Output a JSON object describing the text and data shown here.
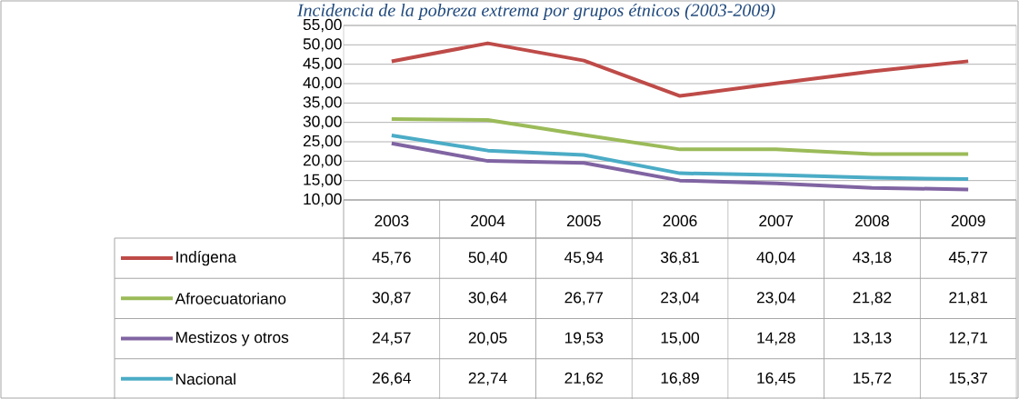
{
  "chart_data": {
    "type": "line",
    "title": "Incidencia de la pobreza extrema por grupos étnicos (2003-2009)",
    "categories": [
      "2003",
      "2004",
      "2005",
      "2006",
      "2007",
      "2008",
      "2009"
    ],
    "ylim": [
      10,
      55
    ],
    "yticks": [
      {
        "value": 10,
        "label": "10,00"
      },
      {
        "value": 15,
        "label": "15,00"
      },
      {
        "value": 20,
        "label": "20,00"
      },
      {
        "value": 25,
        "label": "25,00"
      },
      {
        "value": 30,
        "label": "30,00"
      },
      {
        "value": 35,
        "label": "35,00"
      },
      {
        "value": 40,
        "label": "40,00"
      },
      {
        "value": 45,
        "label": "45,00"
      },
      {
        "value": 50,
        "label": "50,00"
      },
      {
        "value": 55,
        "label": "55,00"
      }
    ],
    "grid": "y",
    "legend": "bottom left",
    "marker": "none",
    "line_style": "solid",
    "series": [
      {
        "name": "Indígena",
        "color": "#be4b48",
        "values": [
          45.76,
          50.4,
          45.94,
          36.81,
          40.04,
          43.18,
          45.77
        ],
        "value_labels": [
          "45,76",
          "50,40",
          "45,94",
          "36,81",
          "40,04",
          "43,18",
          "45,77"
        ]
      },
      {
        "name": "Afroecuatoriano",
        "color": "#9bbb59",
        "values": [
          30.87,
          30.64,
          26.77,
          23.04,
          23.04,
          21.82,
          21.81
        ],
        "value_labels": [
          "30,87",
          "30,64",
          "26,77",
          "23,04",
          "23,04",
          "21,82",
          "21,81"
        ]
      },
      {
        "name": "Mestizos y otros",
        "color": "#8064a2",
        "values": [
          24.57,
          20.05,
          19.53,
          15.0,
          14.28,
          13.13,
          12.71
        ],
        "value_labels": [
          "24,57",
          "20,05",
          "19,53",
          "15,00",
          "14,28",
          "13,13",
          "12,71"
        ]
      },
      {
        "name": "Nacional",
        "color": "#4bacc6",
        "values": [
          26.64,
          22.74,
          21.62,
          16.89,
          16.45,
          15.72,
          15.37
        ],
        "value_labels": [
          "26,64",
          "22,74",
          "21,62",
          "16,89",
          "16,45",
          "15,72",
          "15,37"
        ]
      }
    ]
  }
}
